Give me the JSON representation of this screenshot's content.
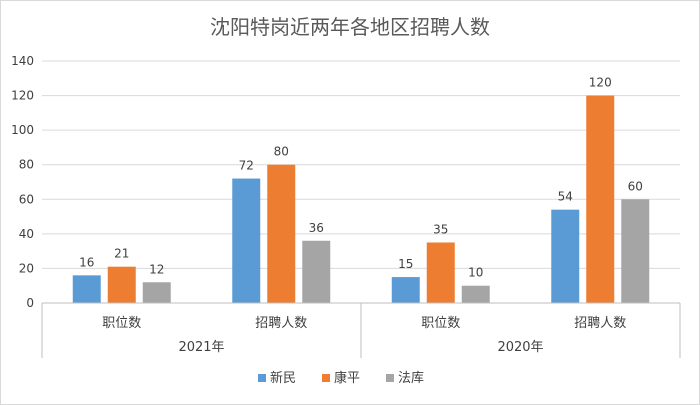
{
  "chart_data": {
    "type": "bar",
    "title": "沈阳特岗近两年各地区招聘人数",
    "xlabel": "",
    "ylabel": "",
    "ylim": [
      0,
      140
    ],
    "yticks": [
      0,
      20,
      40,
      60,
      80,
      100,
      120,
      140
    ],
    "grid": true,
    "legend_position": "bottom",
    "groups": [
      {
        "label": "2021年",
        "categories": [
          "职位数",
          "招聘人数"
        ]
      },
      {
        "label": "2020年",
        "categories": [
          "职位数",
          "招聘人数"
        ]
      }
    ],
    "categories": [
      "职位数",
      "招聘人数",
      "职位数",
      "招聘人数"
    ],
    "series": [
      {
        "name": "新民",
        "color": "#5B9BD5",
        "values": [
          16,
          72,
          15,
          54
        ]
      },
      {
        "name": "康平",
        "color": "#ED7D31",
        "values": [
          21,
          80,
          35,
          120
        ]
      },
      {
        "name": "法库",
        "color": "#A5A5A5",
        "values": [
          12,
          36,
          10,
          60
        ]
      }
    ],
    "colors": {
      "grid": "#D9D9D9",
      "axis": "#BFBFBF",
      "text": "#404040"
    }
  }
}
